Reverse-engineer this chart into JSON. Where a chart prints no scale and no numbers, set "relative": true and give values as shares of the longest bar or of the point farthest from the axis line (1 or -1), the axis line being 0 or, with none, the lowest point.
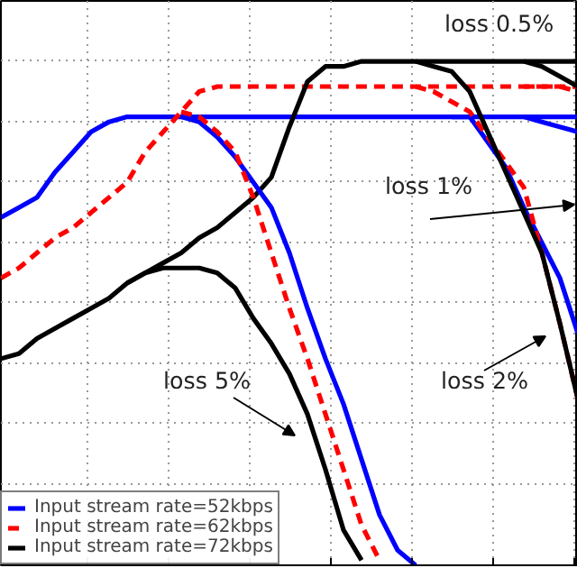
{
  "chart_data": {
    "type": "line",
    "relative": true,
    "grid": true,
    "legend": "bottom left",
    "marker": "none",
    "categories": [
      null,
      null,
      null,
      null,
      null,
      null,
      null,
      null,
      null,
      null,
      null,
      null,
      null,
      null,
      null,
      null,
      null,
      null,
      null,
      null,
      null,
      null,
      null,
      null,
      null,
      null,
      null,
      null,
      null,
      null,
      null,
      null,
      null
    ],
    "series": [
      {
        "name": "Input stream rate=52kbps",
        "color": "#0000ff",
        "line_style": "solid",
        "values": [
          0.69,
          0.71,
          0.73,
          0.78,
          0.82,
          0.86,
          0.88,
          0.89,
          0.89,
          0.89,
          0.89,
          0.89,
          0.89,
          0.89,
          0.89,
          0.89,
          0.89,
          0.89,
          0.89,
          0.89,
          0.89,
          0.89,
          0.89,
          0.89,
          0.89,
          0.89,
          0.89,
          0.89,
          0.89,
          0.89,
          0.89,
          0.89,
          0.89
        ]
      },
      {
        "name": "Input stream rate=62kbps",
        "color": "#ff0000",
        "line_style": "dashed",
        "values": [
          0.57,
          0.59,
          0.62,
          0.65,
          0.67,
          0.7,
          0.73,
          0.76,
          0.82,
          0.86,
          0.9,
          0.94,
          0.95,
          0.95,
          0.95,
          0.95,
          0.95,
          0.95,
          0.95,
          0.95,
          0.95,
          0.95,
          0.95,
          0.95,
          0.95,
          0.95,
          0.95,
          0.95,
          0.95,
          0.95,
          0.95,
          0.95,
          0.95
        ]
      },
      {
        "name": "Input stream rate=72kbps",
        "color": "#000000",
        "line_style": "solid",
        "values": [
          0.41,
          0.42,
          0.45,
          0.47,
          0.49,
          0.51,
          0.53,
          0.56,
          0.58,
          0.6,
          0.62,
          0.65,
          0.67,
          0.7,
          0.73,
          0.77,
          0.87,
          0.96,
          0.99,
          0.99,
          1.0,
          1.0,
          1.0,
          1.0,
          1.0,
          1.0,
          1.0,
          1.0,
          1.0,
          1.0,
          1.0,
          1.0,
          1.0
        ]
      },
      {
        "color": "#0000ff",
        "line_style": "solid",
        "values": [
          null,
          null,
          null,
          null,
          null,
          null,
          null,
          null,
          null,
          null,
          0.89,
          0.88,
          0.85,
          0.81,
          0.76,
          0.71,
          0.62,
          0.51,
          0.41,
          0.32,
          0.21,
          0.1,
          0.03,
          0,
          null,
          null,
          null,
          null,
          null,
          null,
          null,
          null,
          null
        ]
      },
      {
        "color": "#0000ff",
        "line_style": "solid",
        "values": [
          null,
          null,
          null,
          null,
          null,
          null,
          null,
          null,
          null,
          null,
          null,
          null,
          null,
          null,
          null,
          null,
          null,
          null,
          null,
          null,
          null,
          null,
          null,
          null,
          null,
          0.89,
          0.89,
          0.84,
          0.79,
          0.71,
          0.64,
          0.57,
          0.46
        ]
      },
      {
        "color": "#0000ff",
        "line_style": "solid",
        "values": [
          null,
          null,
          null,
          null,
          null,
          null,
          null,
          null,
          null,
          null,
          null,
          null,
          null,
          null,
          null,
          null,
          null,
          null,
          null,
          null,
          null,
          null,
          null,
          null,
          null,
          null,
          null,
          null,
          null,
          0.89,
          0.88,
          0.87,
          0.86
        ]
      },
      {
        "color": "#ff0000",
        "line_style": "dashed",
        "values": [
          null,
          null,
          null,
          null,
          null,
          null,
          null,
          null,
          null,
          null,
          0.9,
          0.89,
          0.86,
          0.82,
          0.73,
          0.62,
          0.51,
          0.41,
          0.3,
          0.19,
          0.08,
          0.01,
          null,
          null,
          null,
          null,
          null,
          null,
          null,
          null,
          null,
          null,
          null
        ]
      },
      {
        "color": "#ff0000",
        "line_style": "dashed",
        "values": [
          null,
          null,
          null,
          null,
          null,
          null,
          null,
          null,
          null,
          null,
          null,
          null,
          null,
          null,
          null,
          null,
          null,
          null,
          null,
          null,
          null,
          null,
          null,
          0.95,
          0.94,
          0.92,
          0.9,
          0.85,
          0.8,
          0.75,
          0.62,
          0.48,
          0.33
        ]
      },
      {
        "color": "#ff0000",
        "line_style": "dashed",
        "values": [
          null,
          null,
          null,
          null,
          null,
          null,
          null,
          null,
          null,
          null,
          null,
          null,
          null,
          null,
          null,
          null,
          null,
          null,
          null,
          null,
          null,
          null,
          null,
          null,
          null,
          null,
          null,
          null,
          null,
          0.95,
          0.95,
          0.95,
          0.94
        ]
      },
      {
        "color": "#000000",
        "line_style": "solid",
        "values": [
          null,
          null,
          null,
          null,
          null,
          null,
          null,
          0.56,
          0.58,
          0.59,
          0.59,
          0.59,
          0.58,
          0.55,
          0.49,
          0.44,
          0.38,
          0.3,
          0.19,
          0.07,
          0.01,
          null,
          null,
          null,
          null,
          null,
          null,
          null,
          null,
          null,
          null,
          null,
          null
        ]
      },
      {
        "color": "#000000",
        "line_style": "solid",
        "values": [
          null,
          null,
          null,
          null,
          null,
          null,
          null,
          null,
          null,
          null,
          null,
          null,
          null,
          null,
          null,
          null,
          null,
          null,
          null,
          null,
          null,
          null,
          null,
          1.0,
          0.99,
          0.98,
          0.94,
          0.86,
          0.78,
          0.7,
          0.62,
          0.48,
          0.33
        ]
      },
      {
        "color": "#000000",
        "line_style": "solid",
        "values": [
          null,
          null,
          null,
          null,
          null,
          null,
          null,
          null,
          null,
          null,
          null,
          null,
          null,
          null,
          null,
          null,
          null,
          null,
          null,
          null,
          null,
          null,
          null,
          null,
          null,
          null,
          null,
          null,
          null,
          1.0,
          0.99,
          0.97,
          0.95
        ]
      }
    ],
    "annotations": [
      "loss 0.5%",
      "loss 1%",
      "loss 2%",
      "loss 5%"
    ]
  }
}
